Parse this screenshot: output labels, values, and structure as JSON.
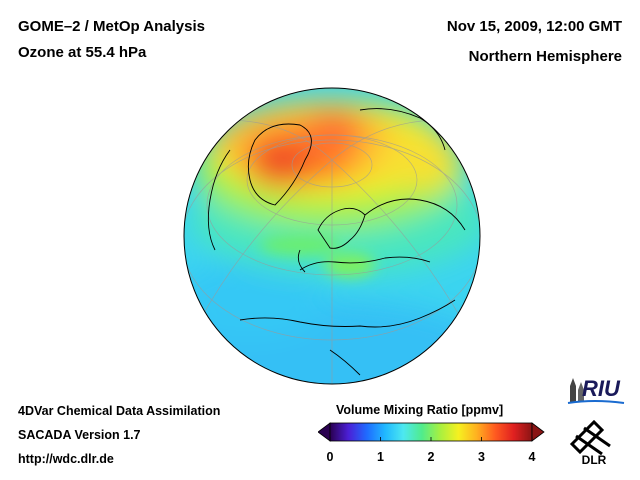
{
  "header": {
    "title_line1": "GOME–2 / MetOp Analysis",
    "title_line2": "Ozone at 55.4 hPa",
    "datetime": "Nov 15, 2009, 12:00 GMT",
    "region": "Northern Hemisphere"
  },
  "footer": {
    "line1": "4DVar Chemical Data Assimilation",
    "line2": "SACADA Version 1.7",
    "line3": "http://wdc.dlr.de"
  },
  "colorbar": {
    "title": "Volume Mixing Ratio [ppmv]",
    "ticks": [
      "0",
      "1",
      "2",
      "3",
      "4"
    ],
    "range": [
      0,
      4
    ],
    "colors": [
      "#2a0050",
      "#4b1fd6",
      "#1f6bff",
      "#20b8ff",
      "#4de8f0",
      "#50ec8c",
      "#a8f040",
      "#f6f020",
      "#ffb020",
      "#ff5a20",
      "#e02020",
      "#8a1414"
    ]
  },
  "logos": {
    "riu": "RIU",
    "dlr": "DLR"
  }
}
